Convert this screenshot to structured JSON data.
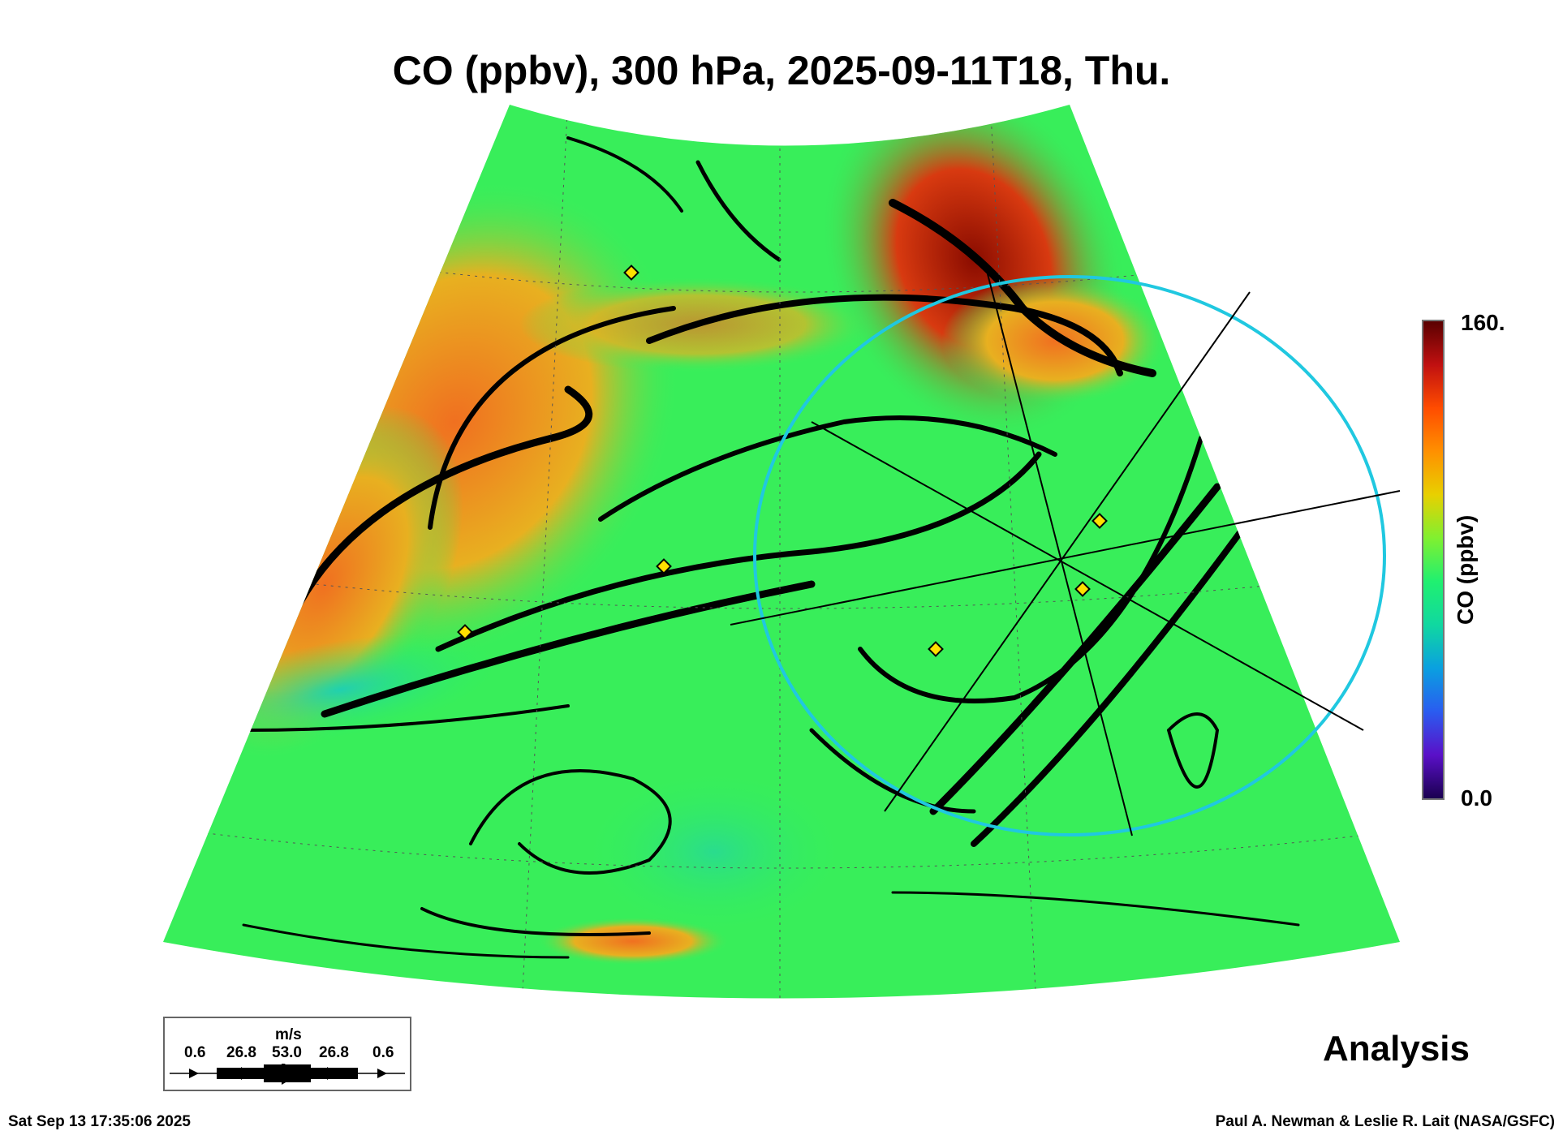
{
  "chart_data": {
    "type": "heatmap",
    "title": "CO (ppbv), 300 hPa, 2025-09-11T18, Thu.",
    "colorbar": {
      "label": "CO (ppbv)",
      "min": 0.0,
      "max": 160,
      "min_label": "0.0",
      "max_label": "160."
    },
    "overlay": "wind streamlines",
    "wind_legend": {
      "unit": "m/s",
      "values": [
        "0.6",
        "26.8",
        "53.0",
        "26.8",
        "0.6"
      ]
    },
    "label": "Analysis"
  },
  "footer": {
    "timestamp": "Sat Sep 13 17:35:06 2025",
    "credit": "Paul A. Newman & Leslie R. Lait (NASA/GSFC)"
  },
  "colors": {
    "background_field": "#30f060",
    "circle": "#20c8e0",
    "marker": "#ffe000"
  }
}
